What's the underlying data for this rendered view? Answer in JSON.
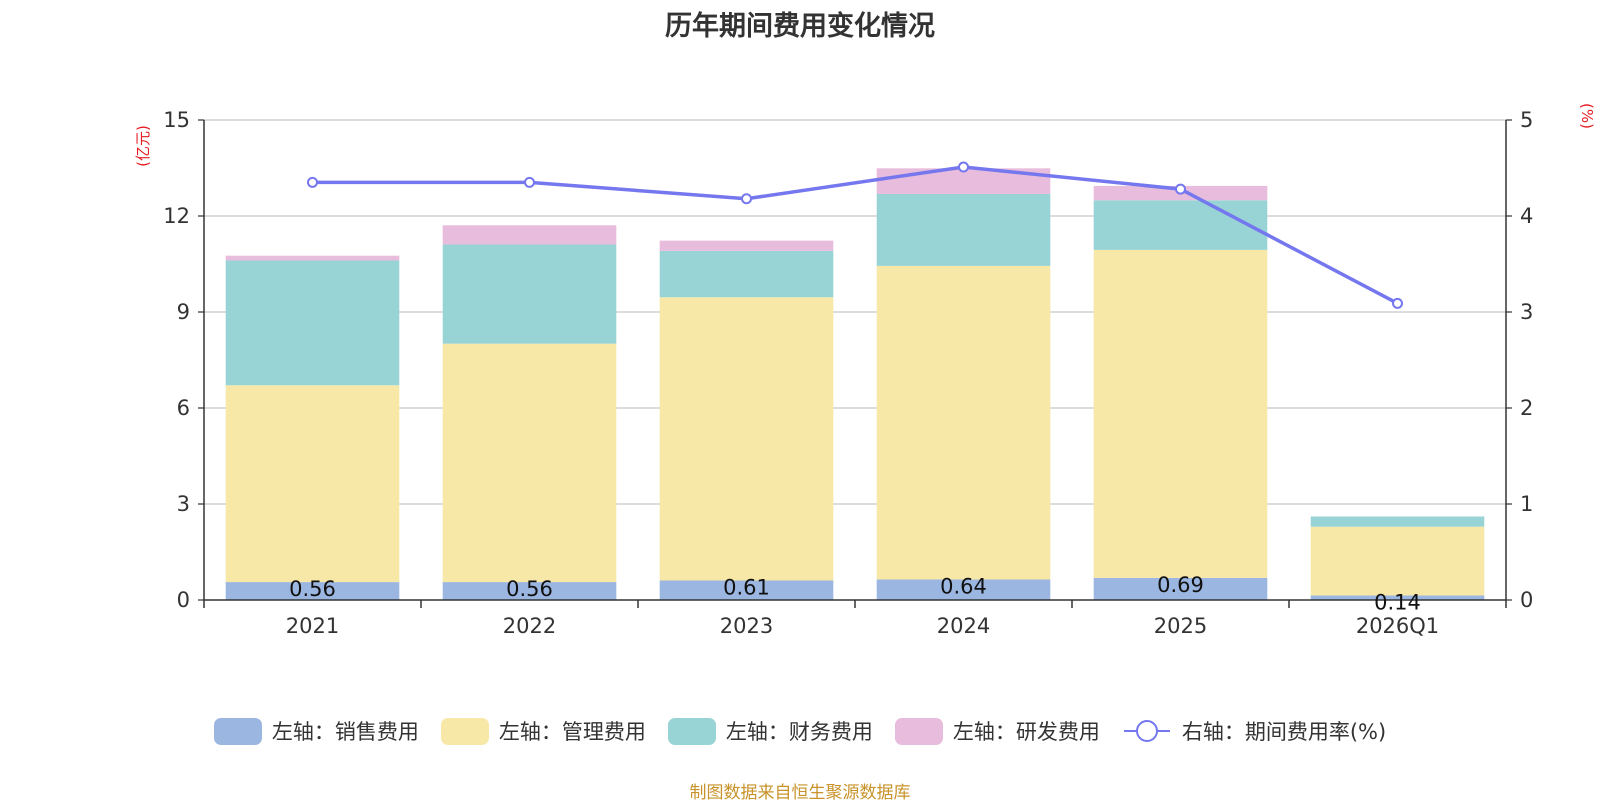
{
  "chart_data": {
    "type": "bar",
    "stacked": true,
    "title": "历年期间费用变化情况",
    "categories": [
      "2021",
      "2022",
      "2023",
      "2024",
      "2025",
      "2026Q1"
    ],
    "left_axis": {
      "unit": "(亿元)",
      "ylim": [
        0,
        15
      ],
      "ticks": [
        0,
        3,
        6,
        9,
        12,
        15
      ]
    },
    "right_axis": {
      "unit": "(%)",
      "ylim": [
        0,
        5
      ],
      "ticks": [
        0,
        1,
        2,
        3,
        4,
        5
      ]
    },
    "series": [
      {
        "name": "左轴：销售费用",
        "axis": "left",
        "type": "bar",
        "color": "#9bb6e0",
        "values": [
          0.56,
          0.56,
          0.61,
          0.64,
          0.69,
          0.14
        ],
        "labels": [
          "0.56",
          "0.56",
          "0.61",
          "0.64",
          "0.69",
          "0.14"
        ]
      },
      {
        "name": "左轴：管理费用",
        "axis": "left",
        "type": "bar",
        "color": "#f8e8a8",
        "values": [
          6.15,
          7.45,
          8.85,
          9.8,
          10.25,
          2.15
        ]
      },
      {
        "name": "左轴：财务费用",
        "axis": "left",
        "type": "bar",
        "color": "#98d4d5",
        "values": [
          3.9,
          3.1,
          1.45,
          2.25,
          1.55,
          0.32
        ]
      },
      {
        "name": "左轴：研发费用",
        "axis": "left",
        "type": "bar",
        "color": "#e8bcdc",
        "values": [
          0.15,
          0.6,
          0.32,
          0.8,
          0.45,
          0.0
        ]
      },
      {
        "name": "右轴：期间费用率(%)",
        "axis": "right",
        "type": "line",
        "color": "#7577ee",
        "values": [
          4.35,
          4.35,
          4.18,
          4.51,
          4.28,
          3.09
        ]
      }
    ],
    "grid": true,
    "legend_position": "bottom"
  },
  "source_note": "制图数据来自恒生聚源数据库"
}
